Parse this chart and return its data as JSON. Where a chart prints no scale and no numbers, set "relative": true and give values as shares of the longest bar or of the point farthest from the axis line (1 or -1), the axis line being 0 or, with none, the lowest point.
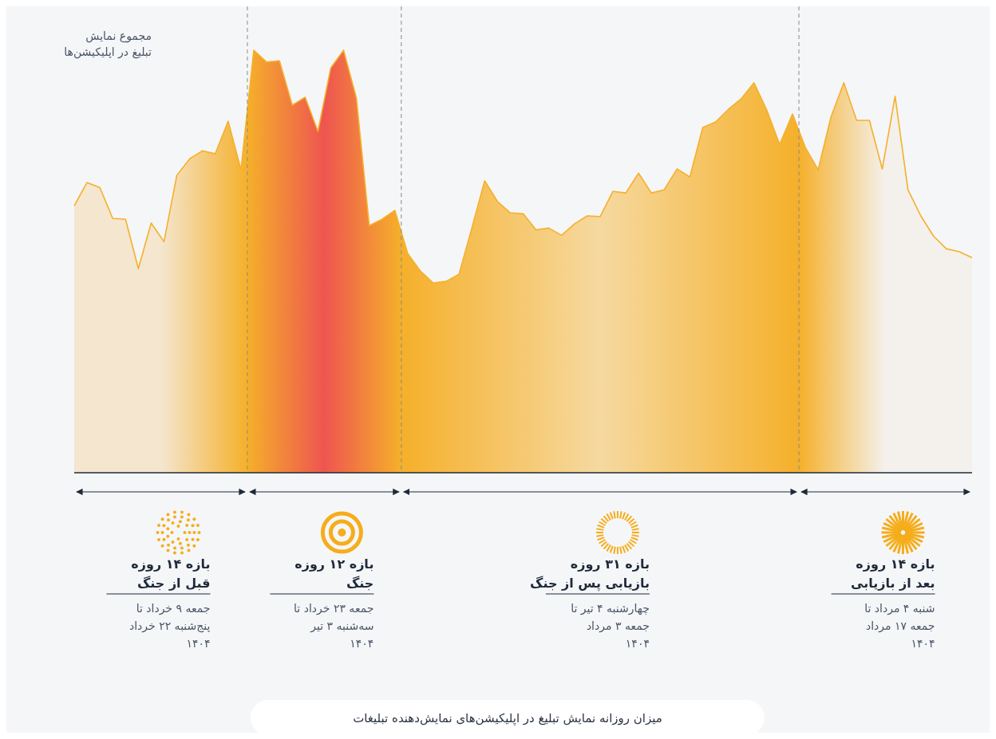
{
  "chart_data": {
    "type": "area",
    "title": "میزان روزانه نمایش تبلیغ در اپلیکیشن‌های نمایش‌دهنده تبلیغات",
    "ylabel": "مجموع نمایش\nتبلیغ در اپلیکیشن‌ها",
    "relative": true,
    "line_style": "solid",
    "categories": [
      null,
      null,
      null,
      null,
      null,
      null,
      null,
      null,
      null,
      null,
      null,
      null,
      null,
      null,
      null,
      null,
      null,
      null,
      null,
      null,
      null,
      null,
      null,
      null,
      null,
      null,
      null,
      null,
      null,
      null,
      null,
      null,
      null,
      null,
      null,
      null,
      null,
      null,
      null,
      null,
      null,
      null,
      null,
      null,
      null,
      null,
      null,
      null,
      null,
      null,
      null,
      null,
      null,
      null,
      null,
      null,
      null,
      null,
      null,
      null,
      null,
      null,
      null,
      null,
      null,
      null,
      null,
      null,
      null,
      null,
      null
    ],
    "series": [
      {
        "color": "#f5b02a",
        "values": [
          0.632,
          0.687,
          0.675,
          0.602,
          0.6,
          0.483,
          0.591,
          0.547,
          0.704,
          0.743,
          0.762,
          0.755,
          0.832,
          0.717,
          1,
          0.972,
          0.975,
          0.87,
          0.889,
          0.808,
          0.958,
          1,
          0.887,
          0.585,
          0.6,
          0.621,
          0.519,
          0.477,
          0.449,
          0.453,
          0.47,
          0.579,
          0.691,
          0.642,
          0.615,
          0.613,
          0.575,
          0.579,
          0.562,
          0.589,
          0.608,
          0.606,
          0.666,
          0.662,
          0.709,
          0.662,
          0.67,
          0.719,
          0.7,
          0.817,
          0.83,
          0.86,
          0.885,
          0.923,
          0.858,
          0.777,
          0.849,
          0.77,
          0.717,
          0.842,
          0.923,
          0.834,
          0.834,
          0.719,
          0.891,
          0.67,
          0.608,
          0.56,
          0.53,
          0.523,
          0.509
        ]
      }
    ],
    "annotations": [
      "بازه ۱۴ روزه\nقبل از جنگ",
      "جمعه ۹ خرداد تا\nپنج‌شنبه ۲۲ خرداد\n۱۴۰۴",
      "بازه ۱۲ روزه\nجنگ",
      "جمعه ۲۳ خرداد تا\nسه‌شنبه ۳ تیر\n۱۴۰۴",
      "بازه ۳۱ روزه\nبازیابی پس از جنگ",
      "چهارشنبه ۴ تیر تا\nجمعه ۳ مرداد\n۱۴۰۴",
      "بازه ۱۴ روزه\nبعد از بازیابی",
      "شنبه ۴ مرداد تا\nجمعه ۱۷ مرداد\n۱۴۰۴"
    ]
  }
}
